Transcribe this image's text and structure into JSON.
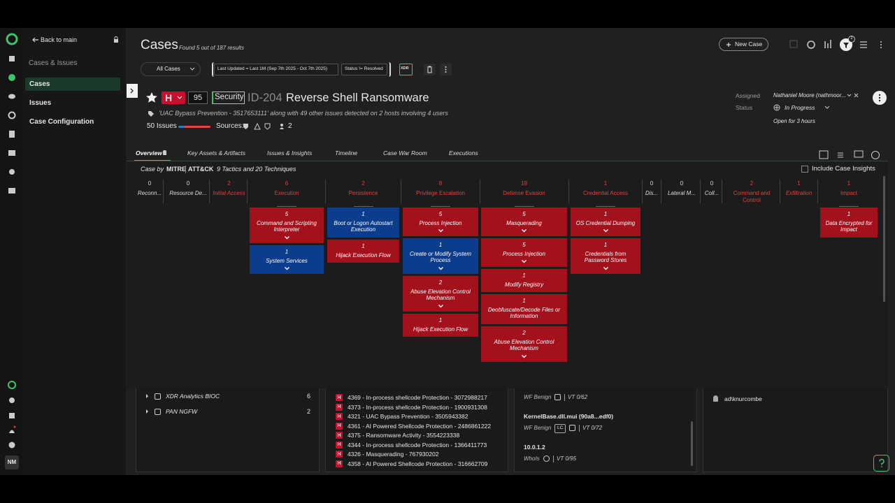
{
  "sidebar": {
    "back": "Back to main",
    "section": "Cases & Issues",
    "items": [
      "Cases",
      "Issues",
      "Case Configuration"
    ],
    "avatar": "NM"
  },
  "header": {
    "title": "Cases",
    "subtitle": "Found 5 out of 187 results",
    "filter": "All Cases",
    "chips": [
      "Last Updated = Last 1M (Sep 7th 2025 - Oct 7th 2025)",
      "Status != Resolved"
    ],
    "badge": "XDR",
    "new_case": "New Case",
    "notifications": 2
  },
  "case": {
    "severity": "H",
    "score": 95,
    "tag": "Security",
    "id": "ID-204",
    "name": "Reverse Shell Ransomware",
    "description": "'UAC Bypass Prevention - 3517653111' along with 49 other issues detected on 2 hosts involving 4 users",
    "issues": "50 Issues",
    "sources_label": "Sources:",
    "users": 2,
    "assigned_label": "Assigned",
    "assignee": "Nathaniel Moore (nathmoor...",
    "status_label": "Status",
    "status": "In Progress",
    "open_for": "Open for 3 hours"
  },
  "tabs": [
    "Overview",
    "Key Assets & Artifacts",
    "Issues & Insights",
    "Timeline",
    "Case War Room",
    "Executions"
  ],
  "mitre": {
    "label": "Case by",
    "brand": [
      "MITRE",
      "ATT&CK"
    ],
    "summary": "9 Tactics and 20 Techniques",
    "insights": "Include Case Insights",
    "tactics": [
      {
        "count": 0,
        "name": "Reconn...",
        "techniques": []
      },
      {
        "count": 0,
        "name": "Resource De...",
        "techniques": []
      },
      {
        "count": 2,
        "name": "Initial Access",
        "techniques": []
      },
      {
        "count": 6,
        "name": "Execution",
        "techniques": [
          {
            "count": 5,
            "name": "Command and Scripting Interpreter",
            "color": "#a3111d",
            "expandable": true
          },
          {
            "count": 1,
            "name": "System Services",
            "color": "#0c3d8c",
            "expandable": true
          }
        ]
      },
      {
        "count": 2,
        "name": "Persistence",
        "techniques": [
          {
            "count": 1,
            "name": "Boot or Logon Autostart Execution",
            "color": "#0c3d8c",
            "expandable": false
          },
          {
            "count": 1,
            "name": "Hijack Execution Flow",
            "color": "#a3111d",
            "expandable": false
          }
        ]
      },
      {
        "count": 8,
        "name": "Privilege Escalation",
        "techniques": [
          {
            "count": 5,
            "name": "Process Injection",
            "color": "#a3111d",
            "expandable": true
          },
          {
            "count": 1,
            "name": "Create or Modify System Process",
            "color": "#0c3d8c",
            "expandable": true
          },
          {
            "count": 2,
            "name": "Abuse Elevation Control Mechanism",
            "color": "#a3111d",
            "expandable": true
          },
          {
            "count": 1,
            "name": "Hijack Execution Flow",
            "color": "#a3111d",
            "expandable": false
          }
        ]
      },
      {
        "count": 19,
        "name": "Defense Evasion",
        "techniques": [
          {
            "count": 5,
            "name": "Masquerading",
            "color": "#a3111d",
            "expandable": true
          },
          {
            "count": 5,
            "name": "Process Injection",
            "color": "#a3111d",
            "expandable": true
          },
          {
            "count": 1,
            "name": "Modify Registry",
            "color": "#a3111d",
            "expandable": false
          },
          {
            "count": 1,
            "name": "Deobfuscate/Decode Files or Information",
            "color": "#a3111d",
            "expandable": false
          },
          {
            "count": 2,
            "name": "Abuse Elevation Control Mechanism",
            "color": "#a3111d",
            "expandable": true
          }
        ]
      },
      {
        "count": 1,
        "name": "Credential Access",
        "techniques": [
          {
            "count": 1,
            "name": "OS Credential Dumping",
            "color": "#a3111d",
            "expandable": true
          },
          {
            "count": 1,
            "name": "Credentials from Password Stores",
            "color": "#a3111d",
            "expandable": true
          }
        ]
      },
      {
        "count": 0,
        "name": "Dis...",
        "techniques": []
      },
      {
        "count": 0,
        "name": "Lateral M...",
        "techniques": []
      },
      {
        "count": 0,
        "name": "Coll...",
        "techniques": []
      },
      {
        "count": 2,
        "name": "Command and Control",
        "techniques": []
      },
      {
        "count": 1,
        "name": "Exfiltration",
        "techniques": []
      },
      {
        "count": 1,
        "name": "Impact",
        "techniques": [
          {
            "count": 1,
            "name": "Data Encrypted for Impact",
            "color": "#a3111d",
            "expandable": false
          }
        ]
      }
    ]
  },
  "panels": {
    "sources": [
      {
        "name": "XDR Analytics BIOC",
        "count": 6
      },
      {
        "name": "PAN NGFW",
        "count": 2
      }
    ],
    "issues": [
      {
        "severity": "H",
        "text": "4369 - In-process shellcode Protection - 3072988217"
      },
      {
        "severity": "H",
        "text": "4373 - In-process shellcode Protection - 1900931308"
      },
      {
        "severity": "H",
        "text": "4321 - UAC Bypass Prevention - 3505943382"
      },
      {
        "severity": "H",
        "text": "4361 - AI Powered Shellcode Protection - 2486861222"
      },
      {
        "severity": "H",
        "text": "4375 - Ransomware Activity - 3554223338"
      },
      {
        "severity": "H",
        "text": "4344 - In-process shellcode Protection - 1366411773"
      },
      {
        "severity": "H",
        "text": "4326 - Masquerading - 767930202"
      },
      {
        "severity": "H",
        "text": "4358 - AI Powered Shellcode Protection - 316662709"
      }
    ],
    "artifacts": [
      {
        "verdict": "WF Benign",
        "vt": "VT 0/62"
      },
      {
        "name": "KernelBase.dll.mui (90a8...edf0)",
        "verdict": "WF Benign",
        "tag": "LC",
        "vt": "VT 0/72"
      },
      {
        "name": "10.0.1.2",
        "verdict": "WhoIs",
        "vt": "VT 0/95"
      }
    ],
    "users": [
      "ad\\knurcombe"
    ]
  }
}
